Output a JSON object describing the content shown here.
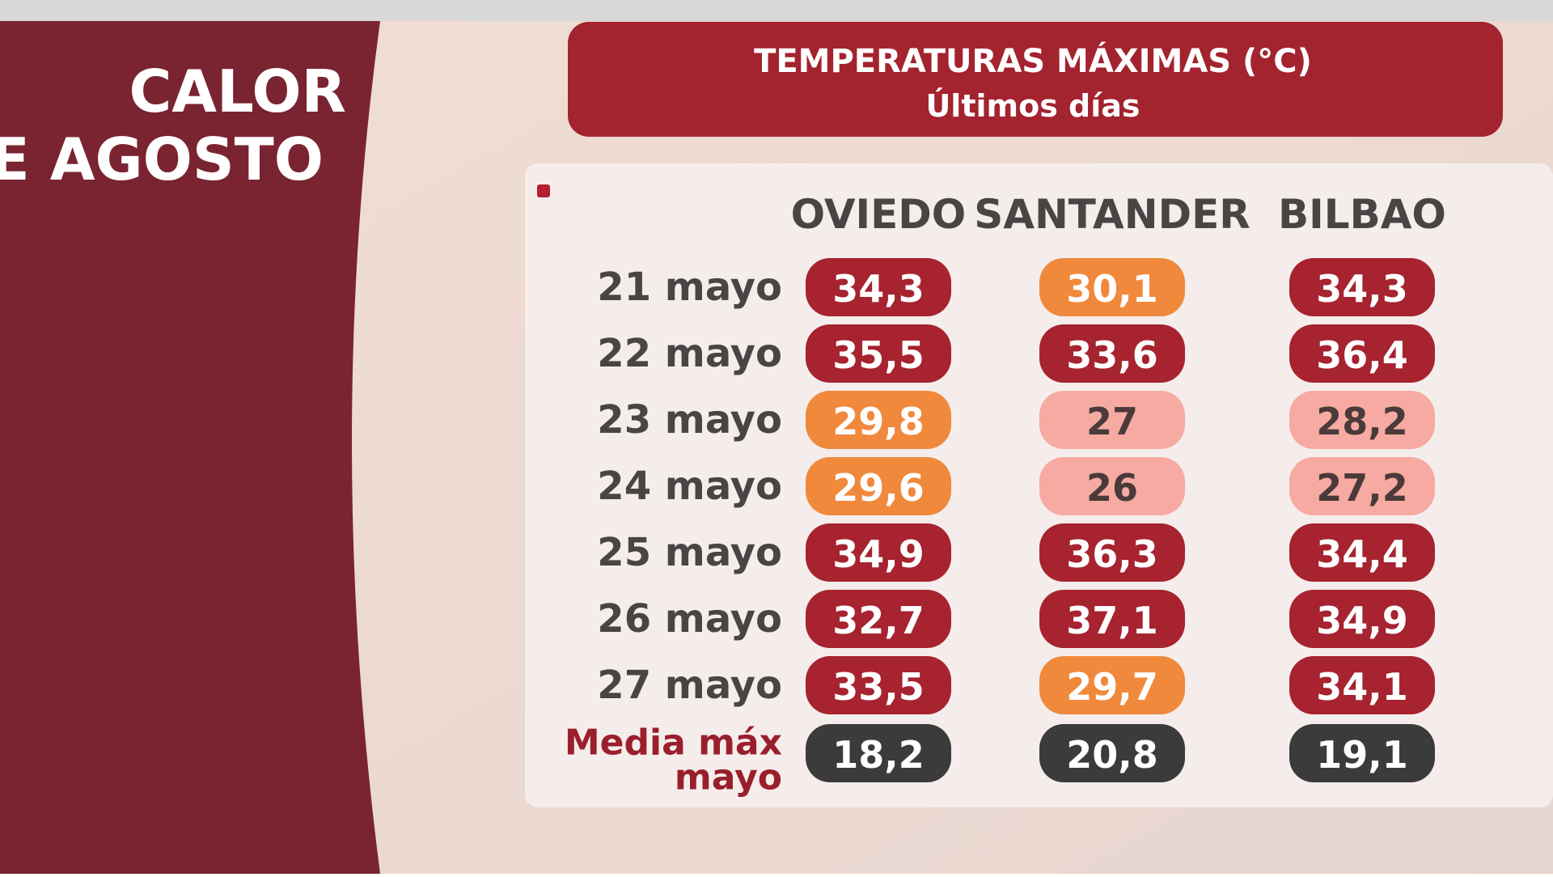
{
  "side_title": {
    "line1": "CALOR",
    "line2": "E AGOSTO"
  },
  "header": {
    "title": "TEMPERATURAS MÁXIMAS (°C)",
    "subtitle": "Últimos días"
  },
  "table": {
    "columns": [
      "OVIEDO",
      "SANTANDER",
      "BILBAO"
    ],
    "rows": [
      {
        "label": "21 mayo",
        "cells": [
          {
            "text": "34,3",
            "color": "#a6232f"
          },
          {
            "text": "30,1",
            "color": "#f0893c"
          },
          {
            "text": "34,3",
            "color": "#a6232f"
          }
        ]
      },
      {
        "label": "22 mayo",
        "cells": [
          {
            "text": "35,5",
            "color": "#a6232f"
          },
          {
            "text": "33,6",
            "color": "#a6232f"
          },
          {
            "text": "36,4",
            "color": "#a6232f"
          }
        ]
      },
      {
        "label": "23 mayo",
        "cells": [
          {
            "text": "29,8",
            "color": "#f0893c"
          },
          {
            "text": "27",
            "color": "#f6aaa1"
          },
          {
            "text": "28,2",
            "color": "#f6aaa1"
          }
        ]
      },
      {
        "label": "24 mayo",
        "cells": [
          {
            "text": "29,6",
            "color": "#f0893c"
          },
          {
            "text": "26",
            "color": "#f6aaa1"
          },
          {
            "text": "27,2",
            "color": "#f6aaa1"
          }
        ]
      },
      {
        "label": "25 mayo",
        "cells": [
          {
            "text": "34,9",
            "color": "#a6232f"
          },
          {
            "text": "36,3",
            "color": "#a6232f"
          },
          {
            "text": "34,4",
            "color": "#a6232f"
          }
        ]
      },
      {
        "label": "26 mayo",
        "cells": [
          {
            "text": "32,7",
            "color": "#a6232f"
          },
          {
            "text": "37,1",
            "color": "#a6232f"
          },
          {
            "text": "34,9",
            "color": "#a6232f"
          }
        ]
      },
      {
        "label": "27 mayo",
        "cells": [
          {
            "text": "33,5",
            "color": "#a6232f"
          },
          {
            "text": "29,7",
            "color": "#f0893c"
          },
          {
            "text": "34,1",
            "color": "#a6232f"
          }
        ]
      }
    ],
    "average": {
      "label_line1": "Media máx",
      "label_line2": "mayo",
      "cells": [
        {
          "text": "18,2",
          "color": "#3b3b3b"
        },
        {
          "text": "20,8",
          "color": "#3b3b3b"
        },
        {
          "text": "19,1",
          "color": "#3b3b3b"
        }
      ]
    }
  }
}
